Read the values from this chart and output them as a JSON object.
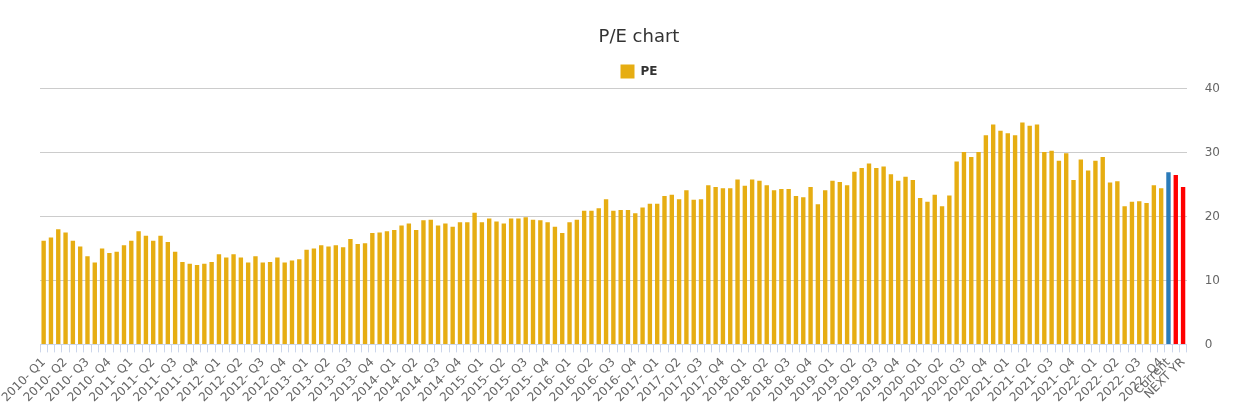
{
  "chart_data": {
    "type": "bar",
    "title": "P/E chart",
    "categories": [
      "2010- Q1",
      null,
      null,
      "2010- Q2",
      null,
      null,
      "2010- Q3",
      null,
      null,
      "2010- Q4",
      null,
      null,
      "2011- Q1",
      null,
      null,
      "2011- Q2",
      null,
      null,
      "2011- Q3",
      null,
      null,
      "2011- Q4",
      null,
      null,
      "2012- Q1",
      null,
      null,
      "2012- Q2",
      null,
      null,
      "2012- Q3",
      null,
      null,
      "2012- Q4",
      null,
      null,
      "2013- Q1",
      null,
      null,
      "2013- Q2",
      null,
      null,
      "2013- Q3",
      null,
      null,
      "2013- Q4",
      null,
      null,
      "2014- Q1",
      null,
      null,
      "2014- Q2",
      null,
      null,
      "2014- Q3",
      null,
      null,
      "2014- Q4",
      null,
      null,
      "2015- Q1",
      null,
      null,
      "2015- Q2",
      null,
      null,
      "2015- Q3",
      null,
      null,
      "2015- Q4",
      null,
      null,
      "2016- Q1",
      null,
      null,
      "2016- Q2",
      null,
      null,
      "2016- Q3",
      null,
      null,
      "2016- Q4",
      null,
      null,
      "2017- Q1",
      null,
      null,
      "2017- Q2",
      null,
      null,
      "2017- Q3",
      null,
      null,
      "2017- Q4",
      null,
      null,
      "2018- Q1",
      null,
      null,
      "2018- Q2",
      null,
      null,
      "2018- Q3",
      null,
      null,
      "2018- Q4",
      null,
      null,
      "2019- Q1",
      null,
      null,
      "2019- Q2",
      null,
      null,
      "2019- Q3",
      null,
      null,
      "2019- Q4",
      null,
      null,
      "2020- Q1",
      null,
      null,
      "2020- Q2",
      null,
      null,
      "2020- Q3",
      null,
      null,
      "2020- Q4",
      null,
      null,
      "2021- Q1",
      null,
      null,
      "2021- Q2",
      null,
      null,
      "2021- Q3",
      null,
      null,
      "2021- Q4",
      null,
      null,
      "2022- Q1",
      null,
      null,
      "2022- Q2",
      null,
      null,
      "2022- Q3",
      null,
      null,
      "2022- Q4",
      "Current",
      null,
      "NEXT YR"
    ],
    "series": [
      {
        "name": "PE",
        "colors": [
          "#e6ad12",
          "#e6ad12",
          "#e6ad12",
          "#e6ad12",
          "#e6ad12",
          "#e6ad12",
          "#e6ad12",
          "#e6ad12",
          "#e6ad12",
          "#e6ad12",
          "#e6ad12",
          "#e6ad12",
          "#e6ad12",
          "#e6ad12",
          "#e6ad12",
          "#e6ad12",
          "#e6ad12",
          "#e6ad12",
          "#e6ad12",
          "#e6ad12",
          "#e6ad12",
          "#e6ad12",
          "#e6ad12",
          "#e6ad12",
          "#e6ad12",
          "#e6ad12",
          "#e6ad12",
          "#e6ad12",
          "#e6ad12",
          "#e6ad12",
          "#e6ad12",
          "#e6ad12",
          "#e6ad12",
          "#e6ad12",
          "#e6ad12",
          "#e6ad12",
          "#e6ad12",
          "#e6ad12",
          "#e6ad12",
          "#e6ad12",
          "#e6ad12",
          "#e6ad12",
          "#e6ad12",
          "#e6ad12",
          "#e6ad12",
          "#e6ad12",
          "#e6ad12",
          "#e6ad12",
          "#e6ad12",
          "#e6ad12",
          "#e6ad12",
          "#e6ad12",
          "#e6ad12",
          "#e6ad12",
          "#e6ad12",
          "#e6ad12",
          "#e6ad12",
          "#e6ad12",
          "#e6ad12",
          "#e6ad12",
          "#e6ad12",
          "#e6ad12",
          "#e6ad12",
          "#e6ad12",
          "#e6ad12",
          "#e6ad12",
          "#e6ad12",
          "#e6ad12",
          "#e6ad12",
          "#e6ad12",
          "#e6ad12",
          "#e6ad12",
          "#e6ad12",
          "#e6ad12",
          "#e6ad12",
          "#e6ad12",
          "#e6ad12",
          "#e6ad12",
          "#e6ad12",
          "#e6ad12",
          "#e6ad12",
          "#e6ad12",
          "#e6ad12",
          "#e6ad12",
          "#e6ad12",
          "#e6ad12",
          "#e6ad12",
          "#e6ad12",
          "#e6ad12",
          "#e6ad12",
          "#e6ad12",
          "#e6ad12",
          "#e6ad12",
          "#e6ad12",
          "#e6ad12",
          "#e6ad12",
          "#e6ad12",
          "#e6ad12",
          "#e6ad12",
          "#e6ad12",
          "#e6ad12",
          "#e6ad12",
          "#e6ad12",
          "#e6ad12",
          "#e6ad12",
          "#e6ad12",
          "#e6ad12",
          "#e6ad12",
          "#e6ad12",
          "#e6ad12",
          "#e6ad12",
          "#e6ad12",
          "#e6ad12",
          "#e6ad12",
          "#e6ad12",
          "#e6ad12",
          "#e6ad12",
          "#e6ad12",
          "#e6ad12",
          "#e6ad12",
          "#e6ad12",
          "#e6ad12",
          "#e6ad12",
          "#e6ad12",
          "#e6ad12",
          "#e6ad12",
          "#e6ad12",
          "#e6ad12",
          "#e6ad12",
          "#e6ad12",
          "#e6ad12",
          "#e6ad12",
          "#e6ad12",
          "#e6ad12",
          "#e6ad12",
          "#e6ad12",
          "#e6ad12",
          "#e6ad12",
          "#e6ad12",
          "#e6ad12",
          "#e6ad12",
          "#e6ad12",
          "#e6ad12",
          "#e6ad12",
          "#e6ad12",
          "#e6ad12",
          "#e6ad12",
          "#e6ad12",
          "#e6ad12",
          "#e6ad12",
          "#e6ad12",
          "#e6ad12",
          "#e6ad12",
          "#e6ad12",
          "#2b7bb9",
          "#ff0000",
          "#ff0000"
        ],
        "values": [
          16.2,
          16.7,
          18.0,
          17.5,
          16.2,
          15.3,
          13.8,
          12.8,
          15.0,
          14.3,
          14.5,
          15.5,
          16.2,
          17.7,
          17.0,
          16.2,
          17.0,
          16.0,
          14.5,
          12.9,
          12.6,
          12.4,
          12.6,
          12.9,
          14.1,
          13.6,
          14.1,
          13.6,
          12.8,
          13.8,
          12.8,
          12.9,
          13.6,
          12.8,
          13.1,
          13.3,
          14.8,
          15.0,
          15.5,
          15.3,
          15.5,
          15.2,
          16.5,
          15.7,
          15.8,
          17.4,
          17.5,
          17.7,
          17.9,
          18.6,
          18.9,
          17.9,
          19.4,
          19.5,
          18.6,
          18.9,
          18.4,
          19.1,
          19.1,
          20.6,
          19.1,
          19.7,
          19.2,
          18.9,
          19.7,
          19.7,
          19.9,
          19.5,
          19.4,
          19.1,
          18.4,
          17.4,
          19.1,
          19.5,
          20.9,
          20.9,
          21.3,
          22.7,
          20.9,
          21.0,
          21.0,
          20.5,
          21.4,
          22.0,
          22.0,
          23.2,
          23.4,
          22.7,
          24.1,
          22.6,
          22.7,
          24.9,
          24.6,
          24.4,
          24.4,
          25.8,
          24.8,
          25.8,
          25.6,
          24.9,
          24.1,
          24.3,
          24.3,
          23.2,
          23.0,
          24.6,
          21.9,
          24.1,
          25.6,
          25.4,
          24.9,
          27.0,
          27.6,
          28.3,
          27.6,
          27.8,
          26.6,
          25.6,
          26.2,
          25.7,
          22.9,
          22.3,
          23.4,
          21.6,
          23.3,
          28.6,
          30.1,
          29.3,
          30.1,
          32.7,
          34.4,
          33.4,
          33.0,
          32.7,
          34.7,
          34.2,
          34.4,
          30.1,
          30.3,
          28.7,
          29.9,
          25.7,
          28.9,
          27.2,
          28.7,
          29.3,
          25.3,
          25.5,
          21.6,
          22.3,
          22.4,
          22.1,
          24.9,
          24.4,
          26.9,
          26.5,
          24.6
        ]
      }
    ],
    "ylim": [
      0,
      40
    ],
    "yticks": [
      0,
      10,
      20,
      30,
      40
    ],
    "grid": "y",
    "legend": "top"
  }
}
